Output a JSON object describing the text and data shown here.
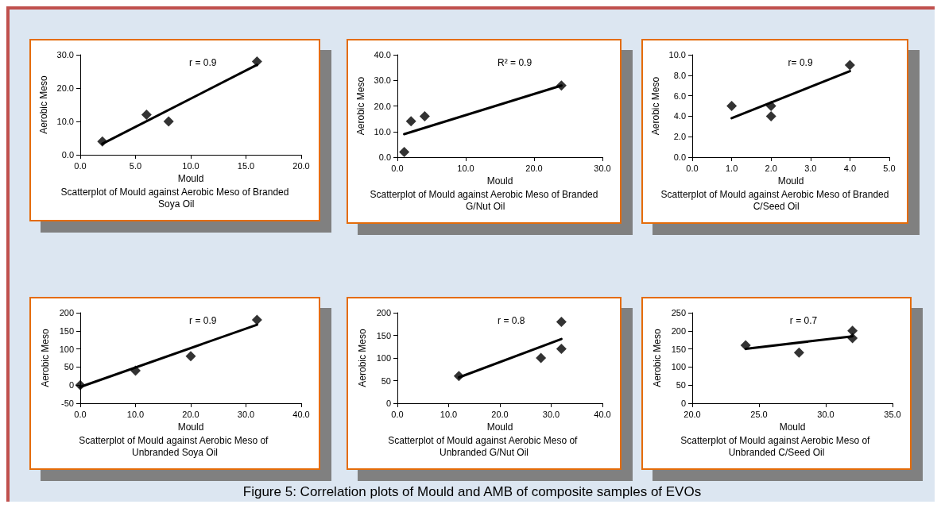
{
  "chart_data": [
    {
      "type": "scatter",
      "title": "Scatterplot of Mould against Aerobic Meso of Branded Soya Oil",
      "xlabel": "Mould",
      "ylabel": "Aerobic Meso",
      "annotations": [
        "r = 0.9"
      ],
      "marker": "diamond",
      "xlim": [
        0,
        20
      ],
      "xticks": [
        {
          "value": 0,
          "label": "0.0"
        },
        {
          "value": 5,
          "label": "5.0"
        },
        {
          "value": 10,
          "label": "10.0"
        },
        {
          "value": 15,
          "label": "15.0"
        },
        {
          "value": 20,
          "label": "20.0"
        }
      ],
      "ylim": [
        0,
        30
      ],
      "yticks": [
        {
          "value": 0,
          "label": "0.0"
        },
        {
          "value": 10,
          "label": "10.0"
        },
        {
          "value": 20,
          "label": "20.0"
        },
        {
          "value": 30,
          "label": "30.0"
        }
      ],
      "series": [
        {
          "type": "scatter",
          "color": "#000000",
          "x": [
            2,
            6,
            8,
            16
          ],
          "values": [
            4,
            12,
            10,
            28
          ]
        },
        {
          "type": "line",
          "color": "#000000",
          "marker": "none",
          "x": [
            2,
            16
          ],
          "values": [
            3.3,
            27
          ]
        }
      ]
    },
    {
      "type": "scatter",
      "title": "Scatterplot of Mould against Aerobic Meso of Branded G/Nut Oil",
      "xlabel": "Mould",
      "ylabel": "Aerobic Meso",
      "annotations": [
        "R² = 0.9"
      ],
      "marker": "diamond",
      "xlim": [
        0,
        30
      ],
      "xticks": [
        {
          "value": 0,
          "label": "0.0"
        },
        {
          "value": 10,
          "label": "10.0"
        },
        {
          "value": 20,
          "label": "20.0"
        },
        {
          "value": 30,
          "label": "30.0"
        }
      ],
      "ylim": [
        0,
        40
      ],
      "yticks": [
        {
          "value": 0,
          "label": "0.0"
        },
        {
          "value": 10,
          "label": "10.0"
        },
        {
          "value": 20,
          "label": "20.0"
        },
        {
          "value": 30,
          "label": "30.0"
        },
        {
          "value": 40,
          "label": "40.0"
        }
      ],
      "series": [
        {
          "type": "scatter",
          "color": "#000000",
          "x": [
            1,
            2,
            4,
            24
          ],
          "values": [
            2,
            14,
            16,
            28
          ]
        },
        {
          "type": "line",
          "color": "#000000",
          "marker": "none",
          "x": [
            1,
            24
          ],
          "values": [
            9,
            28
          ]
        }
      ]
    },
    {
      "type": "scatter",
      "title": "Scatterplot of Mould against Aerobic Meso of Branded C/Seed Oil",
      "xlabel": "Mould",
      "ylabel": "Aerobic Meso",
      "annotations": [
        "r= 0.9"
      ],
      "marker": "diamond",
      "xlim": [
        0,
        5
      ],
      "xticks": [
        {
          "value": 0,
          "label": "0.0"
        },
        {
          "value": 1,
          "label": "1.0"
        },
        {
          "value": 2,
          "label": "2.0"
        },
        {
          "value": 3,
          "label": "3.0"
        },
        {
          "value": 4,
          "label": "4.0"
        },
        {
          "value": 5,
          "label": "5.0"
        }
      ],
      "ylim": [
        0,
        10
      ],
      "yticks": [
        {
          "value": 0,
          "label": "0.0"
        },
        {
          "value": 2,
          "label": "2.0"
        },
        {
          "value": 4,
          "label": "4.0"
        },
        {
          "value": 6,
          "label": "6.0"
        },
        {
          "value": 8,
          "label": "8.0"
        },
        {
          "value": 10,
          "label": "10.0"
        }
      ],
      "series": [
        {
          "type": "scatter",
          "color": "#000000",
          "x": [
            1,
            2,
            2,
            4
          ],
          "values": [
            5,
            5,
            4,
            9
          ]
        },
        {
          "type": "line",
          "color": "#000000",
          "marker": "none",
          "x": [
            1,
            4
          ],
          "values": [
            3.8,
            8.4
          ]
        }
      ]
    },
    {
      "type": "scatter",
      "title": "Scatterplot of Mould against Aerobic Meso of Unbranded Soya Oil",
      "xlabel": "Mould",
      "ylabel": "Aerobic Meso",
      "annotations": [
        "r = 0.9"
      ],
      "marker": "diamond",
      "xlim": [
        0,
        40
      ],
      "xticks": [
        {
          "value": 0,
          "label": "0.0"
        },
        {
          "value": 10,
          "label": "10.0"
        },
        {
          "value": 20,
          "label": "20.0"
        },
        {
          "value": 30,
          "label": "30.0"
        },
        {
          "value": 40,
          "label": "40.0"
        }
      ],
      "ylim": [
        -50,
        200
      ],
      "yticks": [
        -50,
        0,
        50,
        100,
        150,
        200
      ],
      "series": [
        {
          "type": "scatter",
          "color": "#000000",
          "x": [
            0,
            10,
            20,
            32
          ],
          "values": [
            0,
            40,
            80,
            180
          ]
        },
        {
          "type": "line",
          "color": "#000000",
          "marker": "none",
          "x": [
            0,
            32
          ],
          "values": [
            -5,
            167
          ]
        }
      ]
    },
    {
      "type": "scatter",
      "title": "Scatterplot of Mould against Aerobic Meso of Unbranded G/Nut Oil",
      "xlabel": "Mould",
      "ylabel": "Aerobic Meso",
      "annotations": [
        "r = 0.8"
      ],
      "marker": "diamond",
      "xlim": [
        0,
        40
      ],
      "xticks": [
        {
          "value": 0,
          "label": "0.0"
        },
        {
          "value": 10,
          "label": "10.0"
        },
        {
          "value": 20,
          "label": "20.0"
        },
        {
          "value": 30,
          "label": "30.0"
        },
        {
          "value": 40,
          "label": "40.0"
        }
      ],
      "ylim": [
        0,
        200
      ],
      "yticks": [
        0,
        50,
        100,
        150,
        200
      ],
      "series": [
        {
          "type": "scatter",
          "color": "#000000",
          "x": [
            12,
            28,
            32,
            32
          ],
          "values": [
            60,
            100,
            120,
            180
          ]
        },
        {
          "type": "line",
          "color": "#000000",
          "marker": "none",
          "x": [
            12,
            32
          ],
          "values": [
            57,
            142
          ]
        }
      ]
    },
    {
      "type": "scatter",
      "title": "Scatterplot of Mould against Aerobic Meso of Unbranded C/Seed Oil",
      "xlabel": "Mould",
      "ylabel": "Aerobic Meso",
      "annotations": [
        "r = 0.7"
      ],
      "marker": "diamond",
      "xlim": [
        20,
        35
      ],
      "xticks": [
        {
          "value": 20,
          "label": "20.0"
        },
        {
          "value": 25,
          "label": "25.0"
        },
        {
          "value": 30,
          "label": "30.0"
        },
        {
          "value": 35,
          "label": "35.0"
        }
      ],
      "ylim": [
        0,
        250
      ],
      "yticks": [
        0,
        50,
        100,
        150,
        200,
        250
      ],
      "series": [
        {
          "type": "scatter",
          "color": "#000000",
          "x": [
            24,
            28,
            32,
            32
          ],
          "values": [
            160,
            140,
            200,
            180
          ]
        },
        {
          "type": "line",
          "color": "#000000",
          "marker": "none",
          "x": [
            24,
            32
          ],
          "values": [
            150,
            185
          ]
        }
      ]
    },
    {
      "type": "other",
      "title": "Figure 5:  Correlation plots of Mould and AMB of composite samples of EVOs"
    }
  ]
}
